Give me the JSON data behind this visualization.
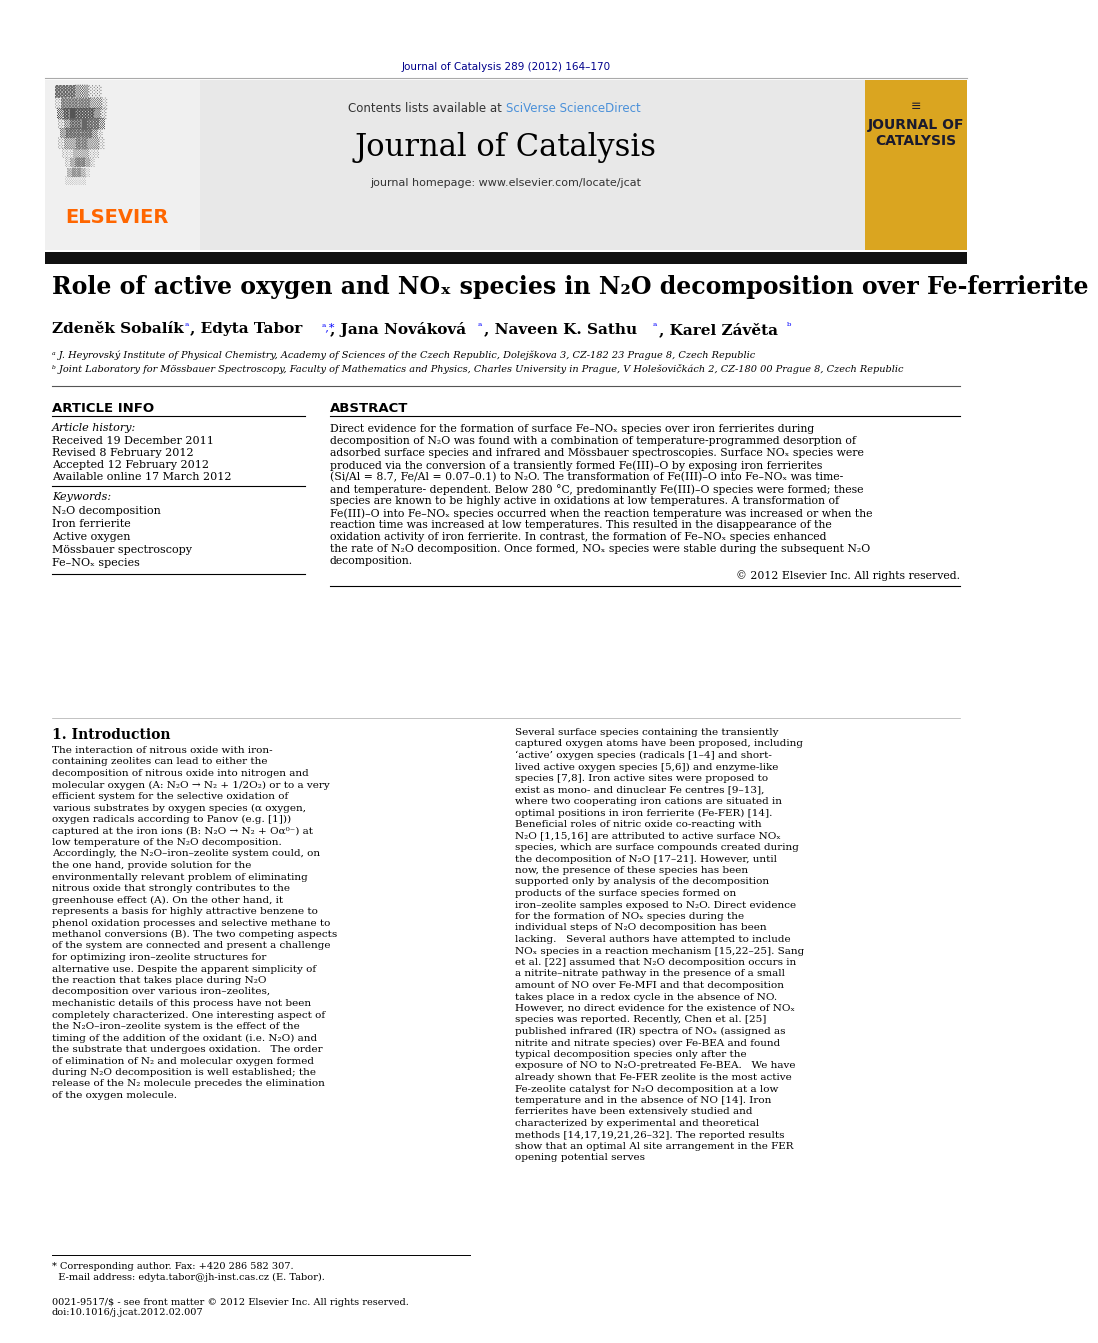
{
  "journal_ref": "Journal of Catalysis 289 (2012) 164–170",
  "journal_name": "Journal of Catalysis",
  "contents_text": "Contents lists available at SciVerse ScienceDirect",
  "homepage": "journal homepage: www.elsevier.com/locate/jcat",
  "elsevier_text": "ELSEVIER",
  "journal_logo_text": "JOURNAL OF\nCATALYSIS",
  "title": "Role of active oxygen and NOₓ species in N₂O decomposition over Fe-ferrierite",
  "authors": "Zdeněk Sobalíkᵃ, Edyta Taborᵃ,*, Jana Novákováᵃ, Naveen K. Sathuᵃ, Karel Závětaᵇ",
  "affil_a": "ᵃ J. Heyrovský Institute of Physical Chemistry, Academy of Sciences of the Czech Republic, Dolejškova 3, CZ-182 23 Prague 8, Czech Republic",
  "affil_b": "ᵇ Joint Laboratory for Mössbauer Spectroscopy, Faculty of Mathematics and Physics, Charles University in Prague, V Holešovičkách 2, CZ-180 00 Prague 8, Czech Republic",
  "article_info_title": "ARTICLE INFO",
  "abstract_title": "ABSTRACT",
  "article_history_label": "Article history:",
  "received": "Received 19 December 2011",
  "revised": "Revised 8 February 2012",
  "accepted": "Accepted 12 February 2012",
  "available": "Available online 17 March 2012",
  "keywords_label": "Keywords:",
  "keywords": [
    "N₂O decomposition",
    "Iron ferrierite",
    "Active oxygen",
    "Mössbauer spectroscopy",
    "Fe–NOₓ species"
  ],
  "abstract_text": "Direct evidence for the formation of surface Fe–NOₓ species over iron ferrierites during decomposition of N₂O was found with a combination of temperature-programmed desorption of adsorbed surface species and infrared and Mössbauer spectroscopies. Surface NOₓ species were produced via the conversion of a transiently formed Fe(III)–O by exposing iron ferrierites (Si/Al = 8.7, Fe/Al = 0.07–0.1) to N₂O. The transformation of Fe(III)–O into Fe–NOₓ was time- and temperature- dependent. Below 280 °C, predominantly Fe(III)–O species were formed; these species are known to be highly active in oxidations at low temperatures. A transformation of Fe(III)–O into Fe–NOₓ species occurred when the reaction temperature was increased or when the reaction time was increased at low temperatures. This resulted in the disappearance of the oxidation activity of iron ferrierite. In contrast, the formation of Fe–NOₓ species enhanced the rate of N₂O decomposition. Once formed, NOₓ species were stable during the subsequent N₂O decomposition.",
  "copyright": "© 2012 Elsevier Inc. All rights reserved.",
  "intro_title": "1. Introduction",
  "intro_col1": "The interaction of nitrous oxide with iron-containing zeolites can lead to either the decomposition of nitrous oxide into nitrogen and molecular oxygen (A: N₂O → N₂ + 1/2O₂) or to a very efficient system for the selective oxidation of various substrates by oxygen species (α oxygen, oxygen radicals according to Panov (e.g. [1])) captured at the iron ions (B: N₂O → N₂ + Oα⁰⁻) at low temperature of the N₂O decomposition. Accordingly, the N₂O–iron–zeolite system could, on the one hand, provide solution for the environmentally relevant problem of eliminating nitrous oxide that strongly contributes to the greenhouse effect (A). On the other hand, it represents a basis for highly attractive benzene to phenol oxidation processes and selective methane to methanol conversions (B). The two competing aspects of the system are connected and present a challenge for optimizing iron–zeolite structures for alternative use. Despite the apparent simplicity of the reaction that takes place during N₂O decomposition over various iron–zeolites, mechanistic details of this process have not been completely characterized. One interesting aspect of the N₂O–iron–zeolite system is the effect of the timing of the addition of the oxidant (i.e. N₂O) and the substrate that undergoes oxidation.\n\nThe order of elimination of N₂ and molecular oxygen formed during N₂O decomposition is well established; the release of the N₂ molecule precedes the elimination of the oxygen molecule.",
  "intro_col2": "Several surface species containing the transiently captured oxygen atoms have been proposed, including ‘active’ oxygen species (radicals [1–4] and short-lived active oxygen species [5,6]) and enzyme-like species [7,8]. Iron active sites were proposed to exist as mono- and dinuclear Fe centres [9–13], where two cooperating iron cations are situated in optimal positions in iron ferrierite (Fe-FER) [14]. Beneficial roles of nitric oxide co-reacting with N₂O [1,15,16] are attributed to active surface NOₓ species, which are surface compounds created during the decomposition of N₂O [17–21]. However, until now, the presence of these species has been supported only by analysis of the decomposition products of the surface species formed on iron–zeolite samples exposed to N₂O. Direct evidence for the formation of NOₓ species during the individual steps of N₂O decomposition has been lacking.\n\nSeveral authors have attempted to include NOₓ species in a reaction mechanism [15,22–25]. Sang et al. [22] assumed that N₂O decomposition occurs in a nitrite–nitrate pathway in the presence of a small amount of NO over Fe-MFI and that decomposition takes place in a redox cycle in the absence of NO. However, no direct evidence for the existence of NOₓ species was reported. Recently, Chen et al. [25] published infrared (IR) spectra of NOₓ (assigned as nitrite and nitrate species) over Fe-BEA and found typical decomposition species only after the exposure of NO to N₂O-pretreated Fe-BEA.\n\nWe have already shown that Fe-FER zeolite is the most active Fe-zeolite catalyst for N₂O decomposition at a low temperature and in the absence of NO [14]. Iron ferrierites have been extensively studied and characterized by experimental and theoretical methods [14,17,19,21,26–32]. The reported results show that an optimal Al site arrangement in the FER opening potential serves",
  "footnote_text": "* Corresponding author. Fax: +420 286 582 307.\n  E-mail address: edyta.tabor@jh-inst.cas.cz (E. Tabor).",
  "doi_text": "0021-9517/$ - see front matter © 2012 Elsevier Inc. All rights reserved.\ndoi:10.1016/j.jcat.2012.02.007",
  "bg_color": "#ffffff",
  "header_bar_color": "#1a1a2e",
  "journal_ref_color": "#00008B",
  "sciverse_color": "#4a90d9",
  "elsevier_color": "#FF6600",
  "journal_logo_bg": "#DAA520",
  "title_color": "#000000",
  "body_color": "#000000",
  "thin_line_color": "#000000",
  "header_bg": "#e8e8e8"
}
